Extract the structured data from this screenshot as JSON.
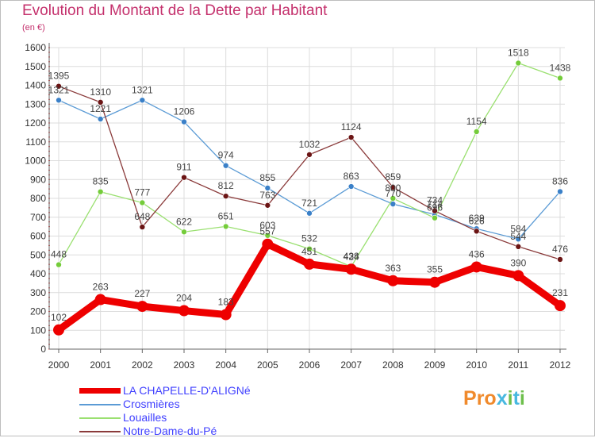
{
  "title": "Evolution du Montant de la Dette par Habitant",
  "subtitle": "(en €)",
  "logo": {
    "letters": [
      "P",
      "r",
      "o",
      "x",
      "i",
      "t",
      "i"
    ]
  },
  "colors": {
    "title": "#c4306c",
    "grid": "#dcdcdc",
    "tick_text": "#333333",
    "legend_text": "#3f3fff",
    "logo": [
      "#f08a2c",
      "#f08a2c",
      "#f08a2c",
      "#48b8e0",
      "#6dbf4b",
      "#48b8e0",
      "#6dbf4b"
    ]
  },
  "chart_data": {
    "type": "line",
    "title": "Evolution du Montant de la Dette par Habitant",
    "ylabel": "(en €)",
    "xlabel": "",
    "ylim": [
      0,
      1600
    ],
    "yticks": [
      0,
      100,
      200,
      300,
      400,
      500,
      600,
      700,
      800,
      900,
      1000,
      1100,
      1200,
      1300,
      1400,
      1500,
      1600
    ],
    "x": [
      "2000",
      "2001",
      "2002",
      "2003",
      "2004",
      "2005",
      "2006",
      "2007",
      "2008",
      "2009",
      "2010",
      "2011",
      "2012"
    ],
    "grid": true,
    "legend_position": "bottom-left",
    "series": [
      {
        "name": "Crosmières",
        "color": "#5b9bd5",
        "dot": "#3a80c8",
        "values": [
          1321,
          1221,
          1321,
          1206,
          974,
          855,
          721,
          863,
          770,
          714,
          639,
          584,
          836
        ]
      },
      {
        "name": "Louailles",
        "color": "#9ae070",
        "dot": "#74cc3a",
        "values": [
          448,
          835,
          777,
          622,
          651,
          603,
          532,
          438,
          800,
          696,
          1154,
          1518,
          1438
        ]
      },
      {
        "name": "Notre-Dame-du-Pé",
        "color": "#8a3a3a",
        "dot": "#6b1414",
        "values": [
          1395,
          1310,
          648,
          911,
          812,
          763,
          1032,
          1124,
          859,
          734,
          626,
          544,
          476
        ]
      },
      {
        "name": "LA CHAPELLE-D'ALIGNé",
        "color": "#ee0000",
        "dot": "#ee0000",
        "values": [
          102,
          263,
          227,
          204,
          183,
          557,
          451,
          424,
          363,
          355,
          436,
          390,
          231
        ]
      }
    ]
  }
}
